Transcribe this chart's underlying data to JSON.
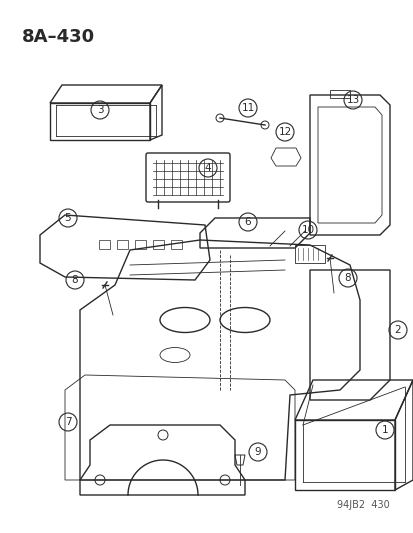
{
  "title": "8A–430",
  "watermark": "94JB2  430",
  "background": "#ffffff",
  "line_color": "#2a2a2a"
}
